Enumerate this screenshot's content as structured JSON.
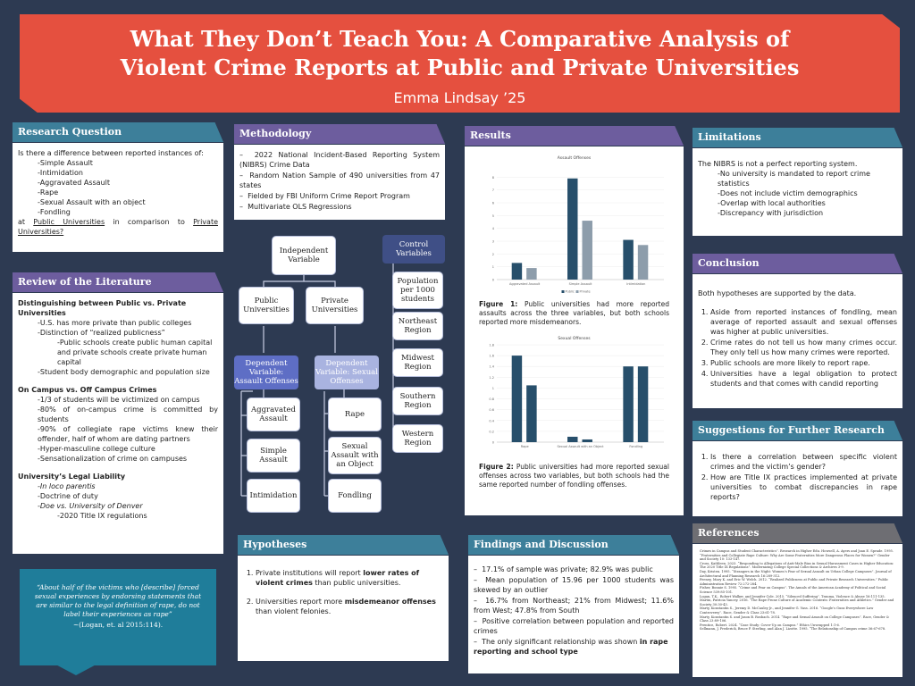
{
  "title": "What They Don’t Teach You: A Comparative Analysis of Violent Crime Reports at Public and Private Universities",
  "author": "Emma Lindsay ’25",
  "research_question": {
    "heading": "Research Question",
    "intro": "Is there a difference between reported instances of:",
    "items": [
      "-Simple Assault",
      "-Intimidation",
      "-Aggravated Assault",
      "-Rape",
      "-Sexual Assault with an object",
      "-Fondling"
    ],
    "closing_pre": "at",
    "closing_public": "Public Universities",
    "closing_mid": "in comparison to",
    "closing_private": "Private Universities?"
  },
  "literature": {
    "heading": "Review of the Literature",
    "s1_title": "Distinguishing between Public vs. Private Universities",
    "s1_l1": "-U.S. has more private than public colleges",
    "s1_l2": "-Distinction of “realized publicness”",
    "s1_l3": "-Public schools create public human capital and private schools create private human capital",
    "s1_l4": "-Student body demographic and population size",
    "s2_title": "On Campus vs. Off Campus Crimes",
    "s2_l1": "-1/3 of students will be victimized on campus",
    "s2_l2": "-80% of on-campus crime is committed by students",
    "s2_l3": "-90% of collegiate rape victims knew their offender, half of whom are dating partners",
    "s2_l4": "-Hyper-masculine college culture",
    "s2_l5": "-Sensationalization of crime on campuses",
    "s3_title": "University’s Legal Liability",
    "s3_l1": "-In loco parentis",
    "s3_l2": "-Doctrine of duty",
    "s3_l3": "-Doe vs. University of Denver",
    "s3_l4": "-2020 Title IX regulations"
  },
  "quote": {
    "text": "“About half of the victims who [describe] forced sexual experiences by endorsing statements that are similar to the legal definition of rape, do not label their experiences as rape”",
    "cite": "~(Logan, et. al 2015:114)."
  },
  "methodology": {
    "heading": "Methodology",
    "items": [
      "2022 National Incident-Based Reporting System (NIBRS) Crime Data",
      "Random Nation Sample of 490 universities from 47 states",
      "Fielded by FBI Uniform Crime Report Program",
      "Multivariate OLS Regressions"
    ]
  },
  "diagram": {
    "independent": "Independent Variable",
    "public": "Public Universities",
    "private": "Private Universities",
    "dep_assault": "Dependent Variable: Assault Offenses",
    "dep_sexual": "Dependent Variable: Sexual Offenses",
    "aggravated": "Aggravated Assault",
    "simple": "Simple Assault",
    "intimidation": "Intimidation",
    "rape": "Rape",
    "sexual_object": "Sexual Assault with an Object",
    "fondling": "Fondling",
    "controls": "Control Variables",
    "population": "Population per 1000 students",
    "northeast": "Northeast Region",
    "midwest": "Midwest Region",
    "southern": "Southern Region",
    "western": "Western Region"
  },
  "hypotheses": {
    "heading": "Hypotheses",
    "h1_pre": "Private institutions will report ",
    "h1_bold": "lower rates of violent crimes",
    "h1_post": " than public universities.",
    "h2_pre": "Universities report more ",
    "h2_bold": "misdemeanor offenses",
    "h2_post": " than violent felonies."
  },
  "results": {
    "heading": "Results",
    "fig1_caption_label": "Figure 1:",
    "fig1_caption": " Public universities had more reported assaults across the three variables, but both schools reported more misdemeanors.",
    "fig2_caption_label": "Figure 2:",
    "fig2_caption": " Public universities had more reported sexual offenses across two variables, but both schools had the same reported number of fondling offenses."
  },
  "findings": {
    "heading": "Findings and Discussion",
    "items": [
      "17.1% of sample was private; 82.9% was public",
      "Mean population of 15.96 per 1000 students was skewed by an outlier",
      "16.7% from Northeast; 21% from Midwest; 11.6% from West; 47.8% from South",
      "Positive correlation between population and reported crimes"
    ],
    "last_pre": "The only significant relationship was shown ",
    "last_bold": "in rape reporting and school type"
  },
  "limitations": {
    "heading": "Limitations",
    "intro": "The NIBRS is not a perfect reporting system.",
    "items": [
      "-No university is mandated to report crime statistics",
      "-Does not include victim demographics",
      "-Overlap with local authorities",
      "-Discrepancy with jurisdiction"
    ]
  },
  "conclusion": {
    "heading": "Conclusion",
    "intro": "Both hypotheses are supported by the data.",
    "items": [
      "Aside from reported instances of fondling, mean average of reported assault and sexual offenses was higher at public universities.",
      "Crime rates do not tell us how many crimes occur. They only tell us how many crimes were reported.",
      "Public schools are more likely to report rape.",
      "Universities have a legal obligation to protect students and that comes with candid reporting"
    ]
  },
  "suggestions": {
    "heading": "Suggestions for Further Research",
    "items": [
      "Is there a correlation between specific violent crimes and the victim’s gender?",
      "How are Title IX practices implemented at private universities to combat discrepancies in rape reports?"
    ]
  },
  "references": {
    "heading": "References",
    "entries": [
      "Crimes in Campus and Student Characteristics”. Research in Higher Edu. Howsell, A. Ayers and Joan E. Sprade. 1995. “Fraternities and Collegiate Rape Culture: Why Are Some Fraternities More Dangerous Places for Women?” Gender and Society 10: 133-147.",
      "Cross, Kathleen. 2023. “Responding to Allegations of Anti-Male Bias in Sexual Harassment Cases in Higher Education: The 2020 Title IX Regulations”. Modernizing College Special Collections & Archives 3-9.",
      "Day, Kristen. 1995. “Strangers in the Night: Women’s Fear of Sexual Assault on Urban College Campuses”. Journal of Architectural and Planning Research 16:289-312.",
      "Feeney, Mary K. and Eric W. Welch. 2012. “Realized Publicness at Public and Private Research Universities.” Public Administration Review 72:272-284.",
      "Fisher, Bonnie S. 1995. “Crime and Fear on Campus”. The Annals of the American Academy of Political and Social Science 539:85-101.",
      "Logan, T.K., Robert Walker, and Jennifer Cole. 2015. “Silenced Suffering”. Trauma, Violence & Abuse 16:111-135.",
      "Martin, Patricia Yancey. 2016. “The Rape Prone Culture of Academic Contexts: Fraternities and Athletics.” Gender and Society 30:30-43.",
      "Marty, Konstantin S., Jeremy D. McCauley Jr., and Jennifer G. Vass. 2016. “Google’s Guns Everywhere Law Controversy”. Race, Gender & Class 23:61-78.",
      "Marty, Konstantin S. and Jason B. Rosbach. 2014. “Rape and Sexual Assault on College Campuses”. Race, Gender & Class 23:89-106.",
      "Prentice, Robert. 2024. “Case Study: Cover-Up on Campus.” Ethics Unwrapped 1:1-6.",
      "Sellmann, J. Frederick, Bruce P. Sterling, and Alan J. Lizotte. 1995. “The Relationship of Campus crime 36:67-678."
    ]
  },
  "chart_data": [
    {
      "type": "bar",
      "title": "Assault Offenses",
      "categories": [
        "Aggravated Assault",
        "Simple Assault",
        "Intimidation"
      ],
      "series": [
        {
          "name": "Public",
          "values": [
            1.3,
            7.9,
            3.1
          ]
        },
        {
          "name": "Private",
          "values": [
            0.9,
            4.6,
            2.7
          ]
        }
      ],
      "ylim": [
        0,
        9
      ],
      "yticks": [
        0,
        1,
        2,
        3,
        4,
        5,
        6,
        7,
        8
      ],
      "colors": [
        "#274f6b",
        "#8d9dab"
      ],
      "legend": "bottom"
    },
    {
      "type": "bar",
      "title": "Sexual Offenses",
      "categories": [
        "Rape",
        "Sexual Assault with an Object",
        "Fondling"
      ],
      "series": [
        {
          "name": "Public",
          "values": [
            1.6,
            0.1,
            1.4
          ]
        },
        {
          "name": "Private",
          "values": [
            1.05,
            0.05,
            1.4
          ]
        }
      ],
      "ylim": [
        0,
        1.8
      ],
      "yticks": [
        0,
        0.2,
        0.4,
        0.6,
        0.8,
        1,
        1.2,
        1.4,
        1.6,
        1.8
      ],
      "colors": [
        "#274f6b",
        "#274f6b"
      ],
      "legend": "none"
    }
  ]
}
